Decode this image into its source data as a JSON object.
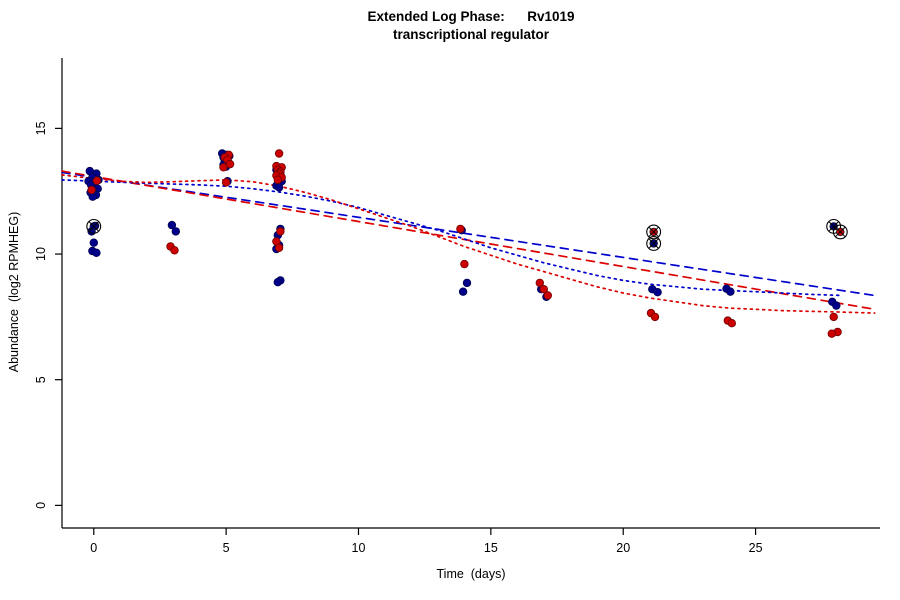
{
  "chart_data": {
    "type": "scatter",
    "title": "Extended Log Phase:      Rv1019",
    "subtitle": "transcriptional regulator",
    "xlabel": "Time  (days)",
    "ylabel": "Abundance  (log2 RPMHEG)",
    "xlim": [
      -1.2,
      29.7
    ],
    "ylim": [
      -0.9,
      17.8
    ],
    "xticks": [
      0,
      5,
      10,
      15,
      20,
      25
    ],
    "yticks": [
      0,
      5,
      10,
      15
    ],
    "grid": false,
    "legend": "none",
    "colors": {
      "blue_points": "#00008B",
      "red_points": "#CC0000",
      "blue_lines": "#0000CD",
      "red_lines": "#DD0000",
      "axis": "#000000",
      "outlier_ring": "#000000"
    },
    "point_series": [
      {
        "name": "blue-replicates",
        "color": "#00008B",
        "stroke": "#000050",
        "points": [
          [
            -0.15,
            13.3
          ],
          [
            0.1,
            13.2
          ],
          [
            -0.05,
            13.05
          ],
          [
            0.18,
            12.95
          ],
          [
            -0.2,
            12.9
          ],
          [
            0.05,
            12.85
          ],
          [
            -0.1,
            12.75
          ],
          [
            0.15,
            12.6
          ],
          [
            0.0,
            12.5
          ],
          [
            -0.12,
            12.45
          ],
          [
            0.08,
            12.35
          ],
          [
            -0.04,
            12.28
          ],
          [
            0.05,
            11.12
          ],
          [
            -0.08,
            10.9
          ],
          [
            0.0,
            10.45
          ],
          [
            -0.05,
            10.12
          ],
          [
            0.1,
            10.05
          ],
          [
            2.95,
            11.15
          ],
          [
            3.1,
            10.9
          ],
          [
            4.85,
            14.0
          ],
          [
            5.0,
            13.95
          ],
          [
            5.12,
            13.9
          ],
          [
            4.9,
            13.85
          ],
          [
            5.05,
            13.8
          ],
          [
            4.95,
            13.7
          ],
          [
            5.1,
            13.62
          ],
          [
            4.9,
            13.55
          ],
          [
            5.0,
            13.48
          ],
          [
            5.05,
            12.9
          ],
          [
            6.9,
            13.35
          ],
          [
            7.05,
            13.25
          ],
          [
            6.95,
            13.1
          ],
          [
            7.1,
            12.9
          ],
          [
            6.9,
            12.72
          ],
          [
            7.0,
            12.65
          ],
          [
            7.05,
            11.0
          ],
          [
            6.95,
            10.75
          ],
          [
            7.0,
            10.35
          ],
          [
            6.9,
            10.2
          ],
          [
            7.05,
            8.95
          ],
          [
            6.95,
            8.88
          ],
          [
            13.9,
            10.95
          ],
          [
            14.1,
            8.85
          ],
          [
            13.95,
            8.5
          ],
          [
            16.9,
            8.6
          ],
          [
            17.1,
            8.3
          ],
          [
            21.1,
            8.6
          ],
          [
            21.3,
            8.48
          ],
          [
            23.9,
            8.62
          ],
          [
            24.05,
            8.5
          ],
          [
            27.9,
            8.1
          ],
          [
            28.05,
            7.95
          ]
        ]
      },
      {
        "name": "red-replicates",
        "color": "#CC0000",
        "stroke": "#700000",
        "points": [
          [
            0.12,
            12.92
          ],
          [
            -0.08,
            12.55
          ],
          [
            2.9,
            10.3
          ],
          [
            3.05,
            10.15
          ],
          [
            5.1,
            13.95
          ],
          [
            4.95,
            13.85
          ],
          [
            5.05,
            13.75
          ],
          [
            5.15,
            13.58
          ],
          [
            4.9,
            13.45
          ],
          [
            5.0,
            12.85
          ],
          [
            7.0,
            14.0
          ],
          [
            6.9,
            13.5
          ],
          [
            7.1,
            13.45
          ],
          [
            6.95,
            13.35
          ],
          [
            7.05,
            13.28
          ],
          [
            7.0,
            13.2
          ],
          [
            6.9,
            13.12
          ],
          [
            7.1,
            13.05
          ],
          [
            6.95,
            12.95
          ],
          [
            7.05,
            10.9
          ],
          [
            6.9,
            10.5
          ],
          [
            7.0,
            10.25
          ],
          [
            13.85,
            11.0
          ],
          [
            14.0,
            9.6
          ],
          [
            16.85,
            8.85
          ],
          [
            17.0,
            8.6
          ],
          [
            17.15,
            8.35
          ],
          [
            21.05,
            7.65
          ],
          [
            21.2,
            7.5
          ],
          [
            23.95,
            7.35
          ],
          [
            24.1,
            7.25
          ],
          [
            27.95,
            7.5
          ],
          [
            28.1,
            6.9
          ],
          [
            27.88,
            6.83
          ]
        ]
      }
    ],
    "outlier_points": [
      {
        "x": 0.0,
        "y": 11.1,
        "color": "#00008B"
      },
      {
        "x": 21.15,
        "y": 10.88,
        "color": "#CC0000"
      },
      {
        "x": 21.15,
        "y": 10.42,
        "color": "#00008B"
      },
      {
        "x": 27.95,
        "y": 11.1,
        "color": "#00008B"
      },
      {
        "x": 28.2,
        "y": 10.88,
        "color": "#CC0000"
      }
    ],
    "fit_lines": [
      {
        "name": "blue-linear-fit",
        "color": "#0000CD",
        "style": "dashed",
        "points": [
          [
            -1.2,
            13.25
          ],
          [
            29.5,
            8.35
          ]
        ]
      },
      {
        "name": "red-linear-fit",
        "color": "#DD0000",
        "style": "dashed",
        "points": [
          [
            -1.2,
            13.3
          ],
          [
            29.5,
            7.8
          ]
        ]
      },
      {
        "name": "blue-smooth-fit",
        "color": "#0000CD",
        "style": "dotted",
        "points": [
          [
            -1.2,
            12.95
          ],
          [
            0,
            12.9
          ],
          [
            2,
            12.82
          ],
          [
            4,
            12.75
          ],
          [
            5,
            12.7
          ],
          [
            6,
            12.6
          ],
          [
            7,
            12.47
          ],
          [
            8,
            12.3
          ],
          [
            9,
            12.1
          ],
          [
            10,
            11.85
          ],
          [
            11,
            11.55
          ],
          [
            12,
            11.25
          ],
          [
            13,
            10.95
          ],
          [
            14,
            10.6
          ],
          [
            15,
            10.25
          ],
          [
            16,
            9.95
          ],
          [
            17,
            9.65
          ],
          [
            18,
            9.4
          ],
          [
            19,
            9.15
          ],
          [
            20,
            8.95
          ],
          [
            21,
            8.8
          ],
          [
            22,
            8.7
          ],
          [
            23,
            8.6
          ],
          [
            24,
            8.55
          ],
          [
            25,
            8.5
          ],
          [
            26,
            8.45
          ],
          [
            27,
            8.4
          ],
          [
            28.3,
            8.35
          ]
        ]
      },
      {
        "name": "red-smooth-fit",
        "color": "#DD0000",
        "style": "dotted",
        "points": [
          [
            -1.2,
            13.15
          ],
          [
            0,
            13.0
          ],
          [
            1,
            12.9
          ],
          [
            2,
            12.85
          ],
          [
            3,
            12.88
          ],
          [
            4,
            12.92
          ],
          [
            5,
            12.95
          ],
          [
            6,
            12.88
          ],
          [
            7,
            12.7
          ],
          [
            8,
            12.45
          ],
          [
            9,
            12.15
          ],
          [
            10,
            11.8
          ],
          [
            11,
            11.45
          ],
          [
            12,
            11.1
          ],
          [
            13,
            10.7
          ],
          [
            14,
            10.3
          ],
          [
            15,
            9.95
          ],
          [
            16,
            9.6
          ],
          [
            17,
            9.3
          ],
          [
            18,
            9.0
          ],
          [
            19,
            8.7
          ],
          [
            20,
            8.45
          ],
          [
            21,
            8.25
          ],
          [
            22,
            8.1
          ],
          [
            23,
            7.95
          ],
          [
            24,
            7.85
          ],
          [
            25,
            7.8
          ],
          [
            26,
            7.75
          ],
          [
            27,
            7.72
          ],
          [
            28,
            7.7
          ],
          [
            29.5,
            7.65
          ]
        ]
      }
    ]
  }
}
